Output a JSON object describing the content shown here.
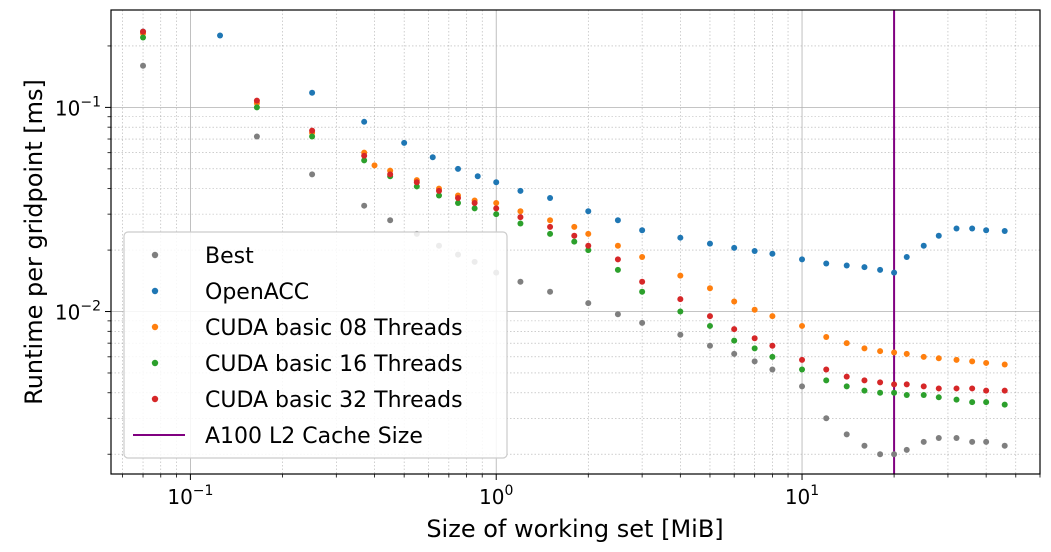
{
  "chart_data": {
    "type": "scatter",
    "xlabel": "Size of working set [MiB]",
    "ylabel": "Runtime per gridpoint [ms]",
    "xscale": "log",
    "yscale": "log",
    "xlim": [
      0.055,
      60
    ],
    "ylim": [
      0.0016,
      0.3
    ],
    "grid": true,
    "legend_position": "lower-left",
    "x_ticks": [
      {
        "value": 0.1,
        "base": "10",
        "exp": "−1"
      },
      {
        "value": 1,
        "base": "10",
        "exp": "0"
      },
      {
        "value": 10,
        "base": "10",
        "exp": "1"
      }
    ],
    "y_ticks": [
      {
        "value": 0.01,
        "base": "10",
        "exp": "−2"
      },
      {
        "value": 0.1,
        "base": "10",
        "exp": "−1"
      }
    ],
    "vline": {
      "name": "A100 L2 Cache Size",
      "x": 20,
      "color": "#800080"
    },
    "series": [
      {
        "name": "Best",
        "color": "#7f7f7f",
        "points": [
          [
            0.07,
            0.16
          ],
          [
            0.165,
            0.072
          ],
          [
            0.25,
            0.047
          ],
          [
            0.37,
            0.033
          ],
          [
            0.45,
            0.028
          ],
          [
            0.55,
            0.024
          ],
          [
            0.65,
            0.021
          ],
          [
            0.75,
            0.019
          ],
          [
            0.85,
            0.0175
          ],
          [
            1.0,
            0.0155
          ],
          [
            1.2,
            0.014
          ],
          [
            1.5,
            0.0125
          ],
          [
            2.0,
            0.011
          ],
          [
            2.5,
            0.0097
          ],
          [
            3.0,
            0.0088
          ],
          [
            4.0,
            0.0077
          ],
          [
            5.0,
            0.0068
          ],
          [
            6.0,
            0.0062
          ],
          [
            7.0,
            0.0057
          ],
          [
            8.0,
            0.0052
          ],
          [
            10.0,
            0.0043
          ],
          [
            12.0,
            0.003
          ],
          [
            14.0,
            0.0025
          ],
          [
            16.0,
            0.0022
          ],
          [
            18.0,
            0.002
          ],
          [
            20.0,
            0.002
          ],
          [
            22.0,
            0.0021
          ],
          [
            25.0,
            0.0023
          ],
          [
            28.0,
            0.0024
          ],
          [
            32.0,
            0.0024
          ],
          [
            36.0,
            0.0023
          ],
          [
            40.0,
            0.0023
          ],
          [
            46.0,
            0.0022
          ]
        ]
      },
      {
        "name": "OpenACC",
        "color": "#1f77b4",
        "points": [
          [
            0.07,
            0.235
          ],
          [
            0.125,
            0.225
          ],
          [
            0.25,
            0.118
          ],
          [
            0.37,
            0.085
          ],
          [
            0.5,
            0.067
          ],
          [
            0.62,
            0.057
          ],
          [
            0.75,
            0.05
          ],
          [
            0.87,
            0.046
          ],
          [
            1.0,
            0.043
          ],
          [
            1.2,
            0.039
          ],
          [
            1.5,
            0.036
          ],
          [
            2.0,
            0.031
          ],
          [
            2.5,
            0.028
          ],
          [
            3.0,
            0.025
          ],
          [
            4.0,
            0.023
          ],
          [
            5.0,
            0.0215
          ],
          [
            6.0,
            0.0205
          ],
          [
            7.0,
            0.0198
          ],
          [
            8.0,
            0.0192
          ],
          [
            10.0,
            0.018
          ],
          [
            12.0,
            0.0172
          ],
          [
            14.0,
            0.0168
          ],
          [
            16.0,
            0.0165
          ],
          [
            18.0,
            0.016
          ],
          [
            20.0,
            0.0155
          ],
          [
            22.0,
            0.0185
          ],
          [
            25.0,
            0.021
          ],
          [
            28.0,
            0.0235
          ],
          [
            32.0,
            0.0255
          ],
          [
            36.0,
            0.0255
          ],
          [
            40.0,
            0.025
          ],
          [
            46.0,
            0.0248
          ]
        ]
      },
      {
        "name": "CUDA basic 08 Threads",
        "color": "#ff7f0e",
        "points": [
          [
            0.07,
            0.23
          ],
          [
            0.165,
            0.105
          ],
          [
            0.25,
            0.075
          ],
          [
            0.37,
            0.06
          ],
          [
            0.4,
            0.052
          ],
          [
            0.45,
            0.049
          ],
          [
            0.55,
            0.044
          ],
          [
            0.65,
            0.04
          ],
          [
            0.75,
            0.037
          ],
          [
            0.85,
            0.035
          ],
          [
            1.0,
            0.034
          ],
          [
            1.2,
            0.031
          ],
          [
            1.5,
            0.028
          ],
          [
            1.8,
            0.026
          ],
          [
            2.0,
            0.024
          ],
          [
            2.5,
            0.021
          ],
          [
            3.0,
            0.0185
          ],
          [
            4.0,
            0.015
          ],
          [
            5.0,
            0.013
          ],
          [
            6.0,
            0.0112
          ],
          [
            7.0,
            0.0102
          ],
          [
            8.0,
            0.0095
          ],
          [
            10.0,
            0.0085
          ],
          [
            12.0,
            0.0075
          ],
          [
            14.0,
            0.007
          ],
          [
            16.0,
            0.0066
          ],
          [
            18.0,
            0.0064
          ],
          [
            20.0,
            0.0063
          ],
          [
            22.0,
            0.0062
          ],
          [
            25.0,
            0.006
          ],
          [
            28.0,
            0.0059
          ],
          [
            32.0,
            0.0058
          ],
          [
            36.0,
            0.0057
          ],
          [
            40.0,
            0.0056
          ],
          [
            46.0,
            0.0055
          ]
        ]
      },
      {
        "name": "CUDA basic 16 Threads",
        "color": "#2ca02c",
        "points": [
          [
            0.07,
            0.22
          ],
          [
            0.165,
            0.1
          ],
          [
            0.25,
            0.072
          ],
          [
            0.37,
            0.055
          ],
          [
            0.45,
            0.046
          ],
          [
            0.55,
            0.041
          ],
          [
            0.65,
            0.037
          ],
          [
            0.75,
            0.034
          ],
          [
            0.85,
            0.032
          ],
          [
            1.0,
            0.03
          ],
          [
            1.2,
            0.027
          ],
          [
            1.5,
            0.024
          ],
          [
            1.8,
            0.022
          ],
          [
            2.0,
            0.02
          ],
          [
            2.5,
            0.016
          ],
          [
            3.0,
            0.0125
          ],
          [
            4.0,
            0.01
          ],
          [
            5.0,
            0.0085
          ],
          [
            6.0,
            0.0072
          ],
          [
            7.0,
            0.0066
          ],
          [
            8.0,
            0.006
          ],
          [
            10.0,
            0.0052
          ],
          [
            12.0,
            0.0046
          ],
          [
            14.0,
            0.0043
          ],
          [
            16.0,
            0.0041
          ],
          [
            18.0,
            0.004
          ],
          [
            20.0,
            0.004
          ],
          [
            22.0,
            0.0039
          ],
          [
            25.0,
            0.0039
          ],
          [
            28.0,
            0.0038
          ],
          [
            32.0,
            0.0037
          ],
          [
            36.0,
            0.0036
          ],
          [
            40.0,
            0.0036
          ],
          [
            46.0,
            0.0035
          ]
        ]
      },
      {
        "name": "CUDA basic 32 Threads",
        "color": "#d62728",
        "points": [
          [
            0.07,
            0.235
          ],
          [
            0.165,
            0.108
          ],
          [
            0.25,
            0.077
          ],
          [
            0.37,
            0.058
          ],
          [
            0.45,
            0.047
          ],
          [
            0.55,
            0.043
          ],
          [
            0.65,
            0.039
          ],
          [
            0.75,
            0.036
          ],
          [
            0.85,
            0.034
          ],
          [
            1.0,
            0.032
          ],
          [
            1.2,
            0.029
          ],
          [
            1.5,
            0.026
          ],
          [
            1.8,
            0.0235
          ],
          [
            2.0,
            0.021
          ],
          [
            2.5,
            0.018
          ],
          [
            3.0,
            0.014
          ],
          [
            4.0,
            0.0115
          ],
          [
            5.0,
            0.0095
          ],
          [
            6.0,
            0.0082
          ],
          [
            7.0,
            0.0074
          ],
          [
            8.0,
            0.0068
          ],
          [
            10.0,
            0.0058
          ],
          [
            12.0,
            0.0052
          ],
          [
            14.0,
            0.0048
          ],
          [
            16.0,
            0.0046
          ],
          [
            18.0,
            0.0045
          ],
          [
            20.0,
            0.0044
          ],
          [
            22.0,
            0.0044
          ],
          [
            25.0,
            0.0043
          ],
          [
            28.0,
            0.0042
          ],
          [
            32.0,
            0.0042
          ],
          [
            36.0,
            0.0042
          ],
          [
            40.0,
            0.0041
          ],
          [
            46.0,
            0.0041
          ]
        ]
      }
    ]
  }
}
